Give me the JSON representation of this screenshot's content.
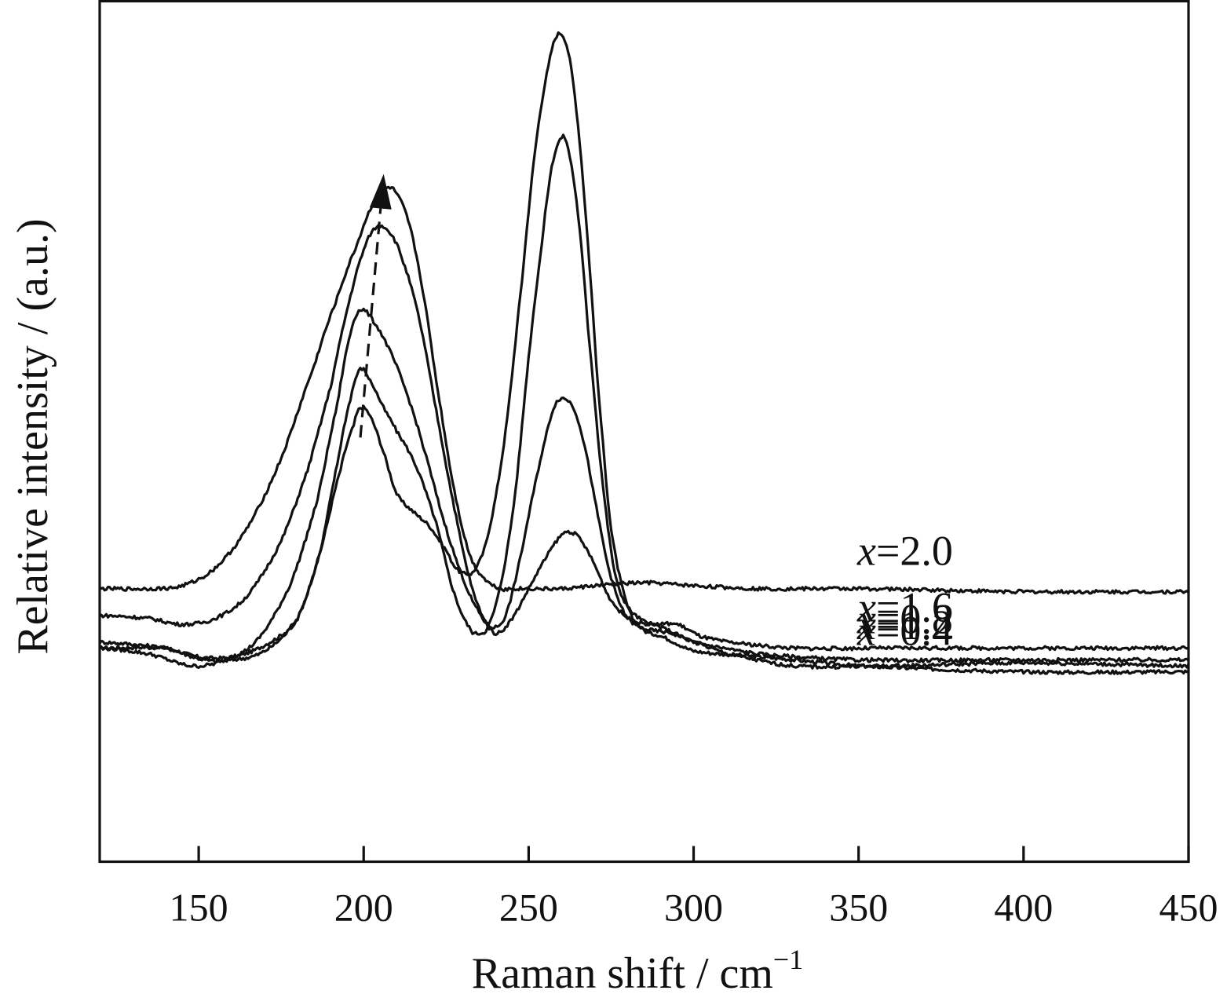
{
  "chart_data": {
    "type": "line",
    "xlabel": "Raman shift / cm",
    "xlabel_sup": "−1",
    "ylabel": "Relative intensity / (a.u.)",
    "xlim": [
      120,
      450
    ],
    "xticks": [
      150,
      200,
      250,
      300,
      350,
      400,
      450
    ],
    "yticks": [],
    "grid": false,
    "annotations": [
      {
        "type": "dashed-arrow",
        "from": {
          "x": 199,
          "series": "x=0.4"
        },
        "to": {
          "x": 207,
          "series": "x=2.0"
        }
      }
    ],
    "series": [
      {
        "name": "x=0.4",
        "var": "x",
        "value": "=0.4",
        "x": [
          120,
          140,
          150,
          160,
          170,
          180,
          187,
          193,
          197,
          199,
          202,
          206,
          210,
          215,
          220,
          225,
          228,
          231,
          234,
          238,
          243,
          248,
          252,
          256,
          259,
          262,
          265,
          268,
          271,
          275,
          280,
          285,
          290,
          300,
          320,
          350,
          400,
          450
        ],
        "y": [
          0.72,
          0.72,
          0.69,
          0.69,
          0.73,
          0.82,
          1.05,
          1.32,
          1.47,
          1.53,
          1.5,
          1.38,
          1.24,
          1.18,
          1.13,
          1.05,
          0.99,
          0.97,
          0.99,
          1.12,
          1.45,
          1.96,
          2.4,
          2.68,
          2.79,
          2.73,
          2.48,
          2.08,
          1.6,
          1.12,
          0.86,
          0.78,
          0.76,
          0.71,
          0.69,
          0.66,
          0.64,
          0.64
        ]
      },
      {
        "name": "x=0.8",
        "var": "x",
        "value": "=0.8",
        "x": [
          120,
          140,
          152,
          160,
          170,
          180,
          187,
          192,
          196,
          199,
          202,
          206,
          210,
          216,
          222,
          227,
          232,
          235,
          238,
          242,
          246,
          250,
          254,
          257,
          260,
          262,
          265,
          268,
          272,
          276,
          280,
          285,
          290,
          300,
          320,
          350,
          400,
          450
        ],
        "y": [
          0.74,
          0.72,
          0.68,
          0.68,
          0.71,
          0.82,
          1.05,
          1.34,
          1.56,
          1.66,
          1.62,
          1.53,
          1.45,
          1.33,
          1.14,
          0.92,
          0.79,
          0.77,
          0.8,
          0.96,
          1.25,
          1.7,
          2.08,
          2.34,
          2.44,
          2.4,
          2.18,
          1.8,
          1.32,
          0.98,
          0.86,
          0.81,
          0.79,
          0.74,
          0.7,
          0.68,
          0.68,
          0.68
        ]
      },
      {
        "name": "x=1.2",
        "var": "x",
        "value": "=1.2",
        "x": [
          120,
          135,
          148,
          158,
          168,
          178,
          186,
          192,
          196,
          199,
          203,
          208,
          213,
          218,
          224,
          230,
          235,
          239,
          243,
          247,
          251,
          255,
          258,
          261,
          264,
          267,
          270,
          274,
          278,
          282,
          287,
          293,
          300,
          310,
          330,
          360,
          400,
          450
        ],
        "y": [
          0.72,
          0.7,
          0.66,
          0.68,
          0.75,
          0.94,
          1.22,
          1.54,
          1.78,
          1.86,
          1.82,
          1.72,
          1.58,
          1.4,
          1.16,
          0.96,
          0.84,
          0.79,
          0.83,
          1.0,
          1.22,
          1.42,
          1.54,
          1.56,
          1.52,
          1.4,
          1.22,
          1.0,
          0.86,
          0.8,
          0.78,
          0.77,
          0.74,
          0.7,
          0.66,
          0.66,
          0.67,
          0.66
        ]
      },
      {
        "name": "x=1.6",
        "var": "x",
        "value": "=1.6",
        "x": [
          120,
          135,
          145,
          155,
          165,
          175,
          183,
          190,
          195,
          200,
          204,
          208,
          212,
          217,
          222,
          227,
          232,
          236,
          240,
          245,
          250,
          255,
          260,
          263,
          266,
          270,
          274,
          278,
          282,
          288,
          295,
          302,
          310,
          330,
          360,
          400,
          450
        ],
        "y": [
          0.83,
          0.82,
          0.8,
          0.82,
          0.9,
          1.08,
          1.32,
          1.6,
          1.86,
          2.06,
          2.14,
          2.12,
          2.02,
          1.82,
          1.52,
          1.22,
          0.96,
          0.83,
          0.77,
          0.82,
          0.92,
          1.02,
          1.1,
          1.11,
          1.08,
          1.0,
          0.9,
          0.84,
          0.81,
          0.8,
          0.8,
          0.76,
          0.74,
          0.72,
          0.72,
          0.72,
          0.72
        ]
      },
      {
        "name": "x=2.0",
        "var": "x",
        "value": "=2.0",
        "x": [
          120,
          135,
          145,
          155,
          165,
          175,
          185,
          192,
          198,
          203,
          207,
          210,
          214,
          218,
          222,
          227,
          232,
          237,
          242,
          245,
          250,
          260,
          270,
          285,
          300,
          320,
          350,
          400,
          450
        ],
        "y": [
          0.92,
          0.92,
          0.93,
          0.99,
          1.13,
          1.36,
          1.67,
          1.9,
          2.08,
          2.22,
          2.27,
          2.25,
          2.14,
          1.92,
          1.62,
          1.28,
          1.04,
          0.95,
          0.92,
          0.92,
          0.92,
          0.92,
          0.93,
          0.94,
          0.93,
          0.92,
          0.92,
          0.91,
          0.91
        ]
      }
    ]
  }
}
